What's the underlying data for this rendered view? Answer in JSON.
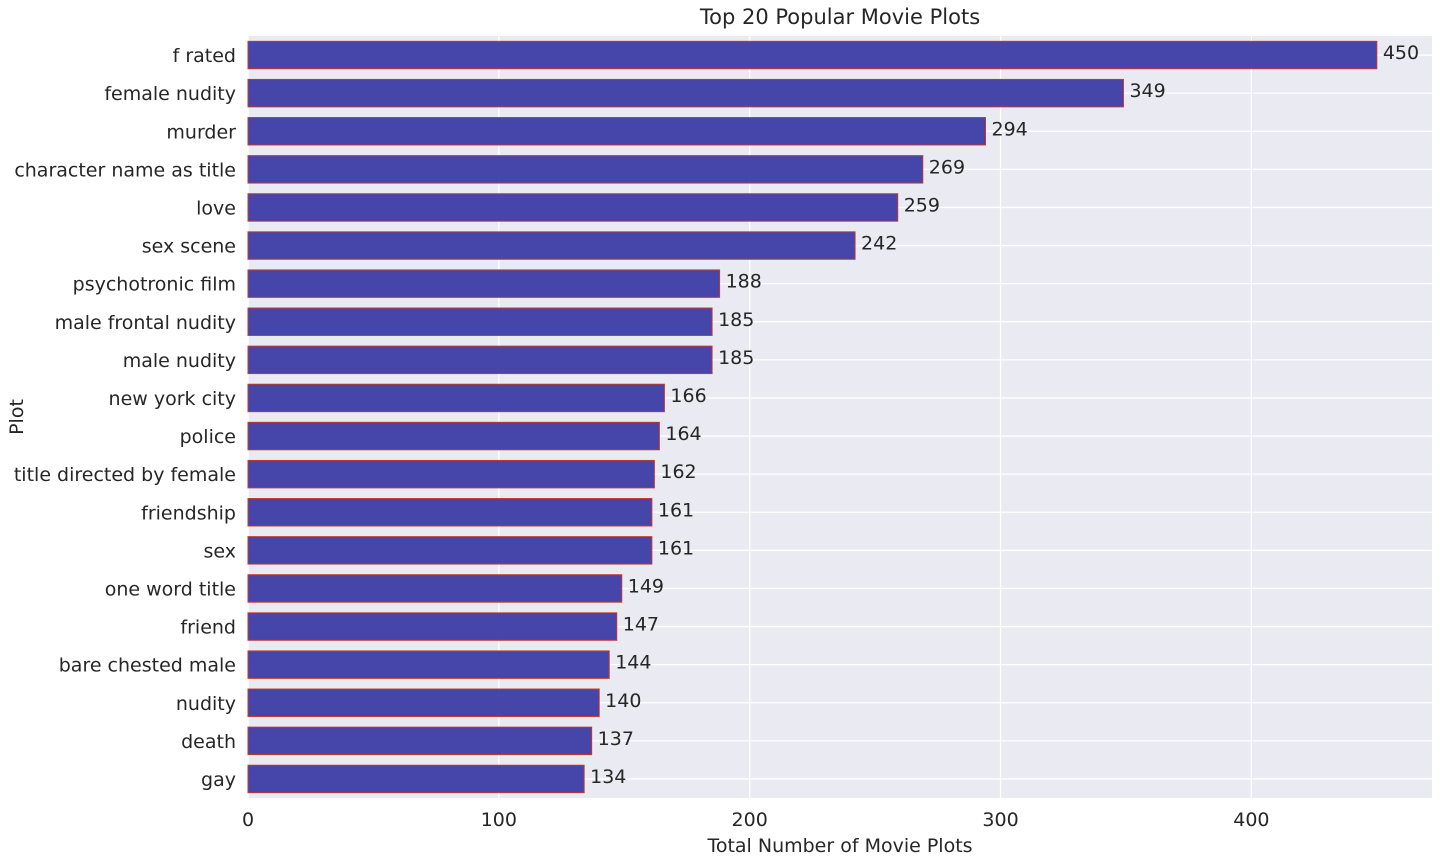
{
  "chart_data": {
    "type": "bar",
    "orientation": "horizontal",
    "title": "Top 20 Popular Movie Plots",
    "xlabel": "Total Number of Movie Plots",
    "ylabel": "Plot",
    "xlim": [
      0,
      472
    ],
    "xticks": [
      0,
      100,
      200,
      300,
      400
    ],
    "grid": true,
    "categories": [
      "f rated",
      "female nudity",
      "murder",
      "character name as title",
      "love",
      "sex scene",
      "psychotronic film",
      "male frontal nudity",
      "male nudity",
      "new york city",
      "police",
      "title directed by female",
      "friendship",
      "sex",
      "one word title",
      "friend",
      "bare chested male",
      "nudity",
      "death",
      "gay"
    ],
    "values": [
      450,
      349,
      294,
      269,
      259,
      242,
      188,
      185,
      185,
      166,
      164,
      162,
      161,
      161,
      149,
      147,
      144,
      140,
      137,
      134
    ],
    "colors": {
      "background": "#eaeaf2",
      "grid": "#ffffff",
      "bar_fill": "#2d2d9f",
      "bar_edge": "#c0392b"
    }
  }
}
